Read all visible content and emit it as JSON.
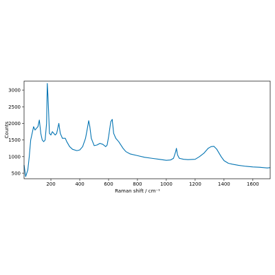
{
  "chart_data": {
    "type": "line",
    "xlabel": "Raman shift / cm⁻¹",
    "ylabel": "Counts",
    "x": [
      14,
      25,
      40,
      50,
      60,
      70,
      80,
      90,
      100,
      110,
      120,
      130,
      140,
      150,
      160,
      170,
      175,
      180,
      190,
      200,
      210,
      220,
      230,
      240,
      255,
      265,
      280,
      300,
      310,
      330,
      350,
      380,
      400,
      420,
      440,
      455,
      462,
      470,
      480,
      500,
      520,
      540,
      560,
      580,
      590,
      600,
      615,
      625,
      635,
      650,
      670,
      700,
      720,
      750,
      800,
      850,
      900,
      950,
      1000,
      1030,
      1050,
      1065,
      1070,
      1078,
      1090,
      1120,
      1150,
      1200,
      1230,
      1260,
      1290,
      1310,
      1330,
      1350,
      1380,
      1400,
      1430,
      1460,
      1500,
      1550,
      1600,
      1650,
      1700,
      1720
    ],
    "series": [
      {
        "color": "#0173b2",
        "values": [
          750,
          400,
          600,
          1000,
          1500,
          1700,
          1900,
          1800,
          1850,
          1900,
          2100,
          1700,
          1500,
          1450,
          1500,
          2000,
          3200,
          2800,
          1700,
          1650,
          1750,
          1700,
          1650,
          1700,
          2000,
          1700,
          1550,
          1550,
          1450,
          1300,
          1220,
          1180,
          1200,
          1300,
          1550,
          1900,
          2080,
          1900,
          1550,
          1330,
          1350,
          1400,
          1370,
          1300,
          1350,
          1600,
          2050,
          2120,
          1700,
          1550,
          1450,
          1250,
          1150,
          1080,
          1030,
          980,
          950,
          920,
          890,
          900,
          950,
          1150,
          1250,
          1050,
          950,
          920,
          910,
          920,
          1000,
          1100,
          1250,
          1300,
          1310,
          1220,
          1000,
          880,
          800,
          770,
          740,
          710,
          690,
          680,
          660,
          670
        ]
      }
    ],
    "xlim": [
      14,
      1720
    ],
    "ylim": [
      335,
      3270
    ],
    "xticks": [
      200,
      400,
      600,
      800,
      1000,
      1200,
      1400,
      1600
    ],
    "yticks": [
      500,
      1000,
      1500,
      2000,
      2500,
      3000
    ]
  }
}
